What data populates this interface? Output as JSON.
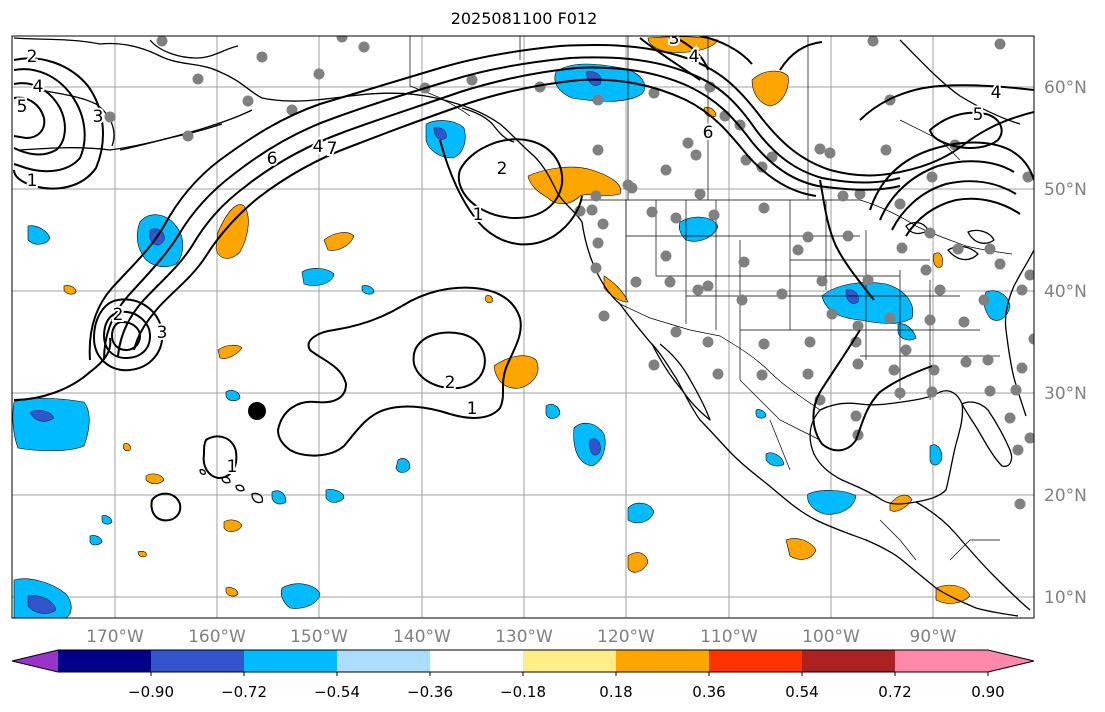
{
  "title": "2025081100 F012",
  "lon_labels": [
    "170°W",
    "160°W",
    "150°W",
    "140°W",
    "130°W",
    "120°W",
    "110°W",
    "100°W",
    "90°W"
  ],
  "lat_labels": [
    "60°N",
    "50°N",
    "40°N",
    "30°N",
    "20°N",
    "10°N"
  ],
  "colorbar": {
    "tick_labels": [
      "−0.90",
      "−0.72",
      "−0.54",
      "−0.36",
      "−0.18",
      "0.18",
      "0.36",
      "0.54",
      "0.72",
      "0.90"
    ],
    "colors": [
      "#9933cc",
      "#000088",
      "#3355cc",
      "#00bbff",
      "#aaddff",
      "#ffffff",
      "#ffee88",
      "#ffa500",
      "#ff3300",
      "#aa2222",
      "#ff88aa"
    ]
  },
  "contour_labels": [
    "2",
    "4",
    "5",
    "3",
    "1",
    "6",
    "4",
    "7",
    "2",
    "1",
    "3",
    "2",
    "3",
    "4",
    "6",
    "4",
    "5",
    "2",
    "1",
    "1"
  ],
  "colors": {
    "negative_fill": "#00bbff",
    "positive_fill": "#ffa500",
    "station_dot": "#808080",
    "grid": "#a0a0a0",
    "axis_label": "#808080"
  }
}
